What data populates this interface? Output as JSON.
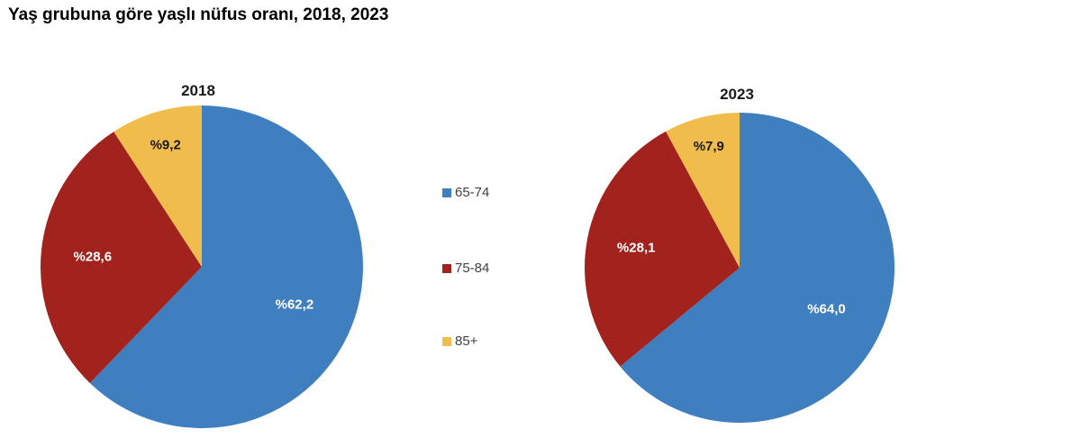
{
  "title": "Yaş grubuna göre yaşlı nüfus oranı, 2018, 2023",
  "chart_data": [
    {
      "type": "pie",
      "title": "2018",
      "categories": [
        "65-74",
        "75-84",
        "85+"
      ],
      "values": [
        62.2,
        28.6,
        9.2
      ],
      "labels": [
        "%62,2",
        "%28,6",
        "%9,2"
      ],
      "start": "top",
      "direction": "clockwise"
    },
    {
      "type": "pie",
      "title": "2023",
      "categories": [
        "65-74",
        "75-84",
        "85+"
      ],
      "values": [
        64.0,
        28.1,
        7.9
      ],
      "labels": [
        "%64,0",
        "%28,1",
        "%7,9"
      ],
      "start": "top",
      "direction": "clockwise"
    }
  ],
  "legend": {
    "placement": "center",
    "items": [
      {
        "label": "65-74",
        "color": "#3F7EBF"
      },
      {
        "label": "75-84",
        "color": "#A2231D"
      },
      {
        "label": "85+",
        "color": "#F0BC4C"
      }
    ]
  },
  "label_colors": [
    "#FFFFFF",
    "#FFFFFF",
    "#1A1A1A"
  ]
}
